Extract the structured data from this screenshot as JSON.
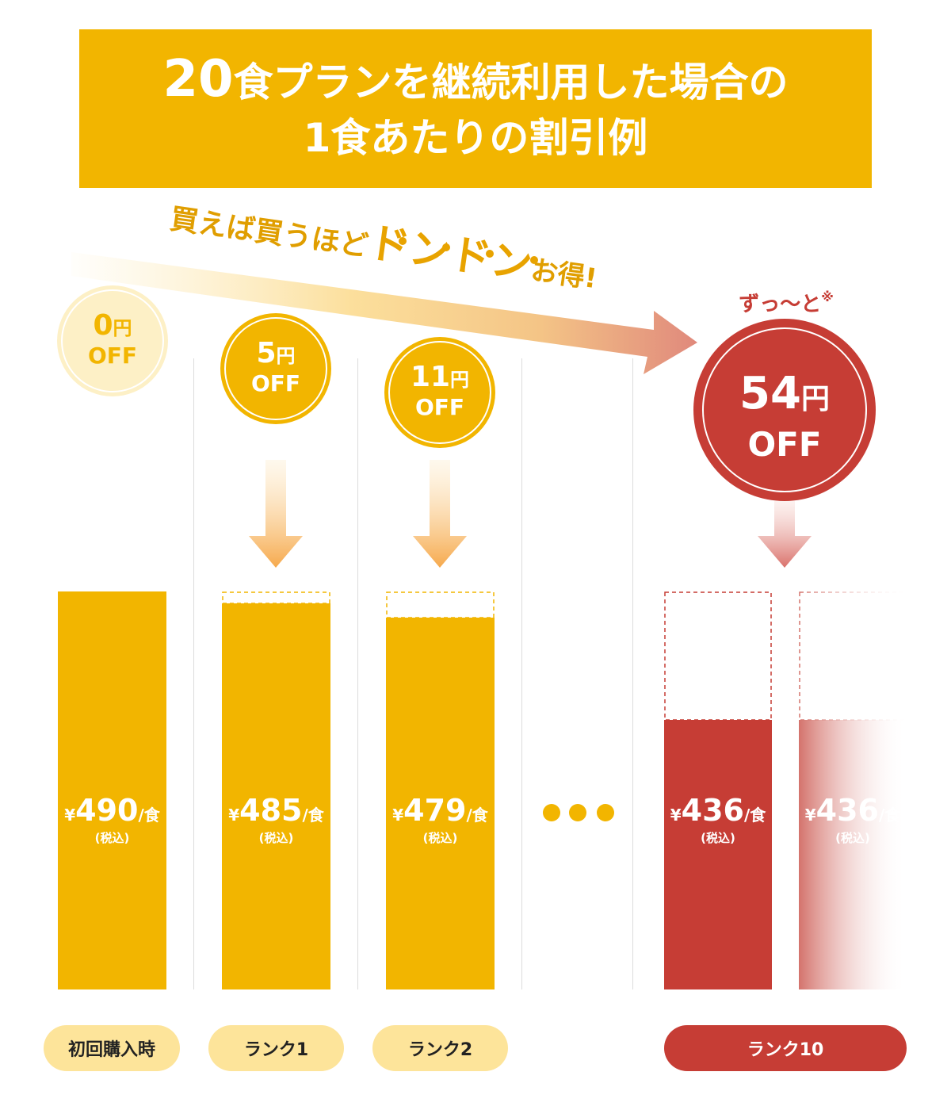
{
  "title": {
    "line1_num": "20",
    "line1_rest": "食プランを継続利用した場合の",
    "line2": "1食あたりの割引例"
  },
  "banner": {
    "main": "買えば買うほど",
    "emphasis": "ドンドン",
    "suffix": "お得!"
  },
  "zutto": {
    "text": "ずっ〜と",
    "note_mark": "※"
  },
  "price_tax_label": "(税込)",
  "price_unit": "/食",
  "ellipsis": "●●●",
  "colors": {
    "accent": "#f2b500",
    "brand_red": "#c63d35",
    "pale_yellow": "#fde49a",
    "arrow_orange": "#f6a94c"
  },
  "chart_data": {
    "type": "bar",
    "categories": [
      "初回購入時",
      "ランク1",
      "ランク2",
      "",
      "ランク10",
      ""
    ],
    "series": [
      {
        "values": [
          490,
          485,
          479,
          null,
          436,
          436
        ],
        "labels": [
          "¥490",
          "¥485",
          "¥479",
          "",
          "¥436",
          "¥436"
        ],
        "discounts": [
          {
            "num": "0",
            "unit": "円",
            "off": "OFF"
          },
          {
            "num": "5",
            "unit": "円",
            "off": "OFF"
          },
          {
            "num": "11",
            "unit": "円",
            "off": "OFF"
          },
          null,
          {
            "num": "54",
            "unit": "円",
            "off": "OFF"
          },
          null
        ]
      }
    ],
    "baseline_value": 490
  }
}
